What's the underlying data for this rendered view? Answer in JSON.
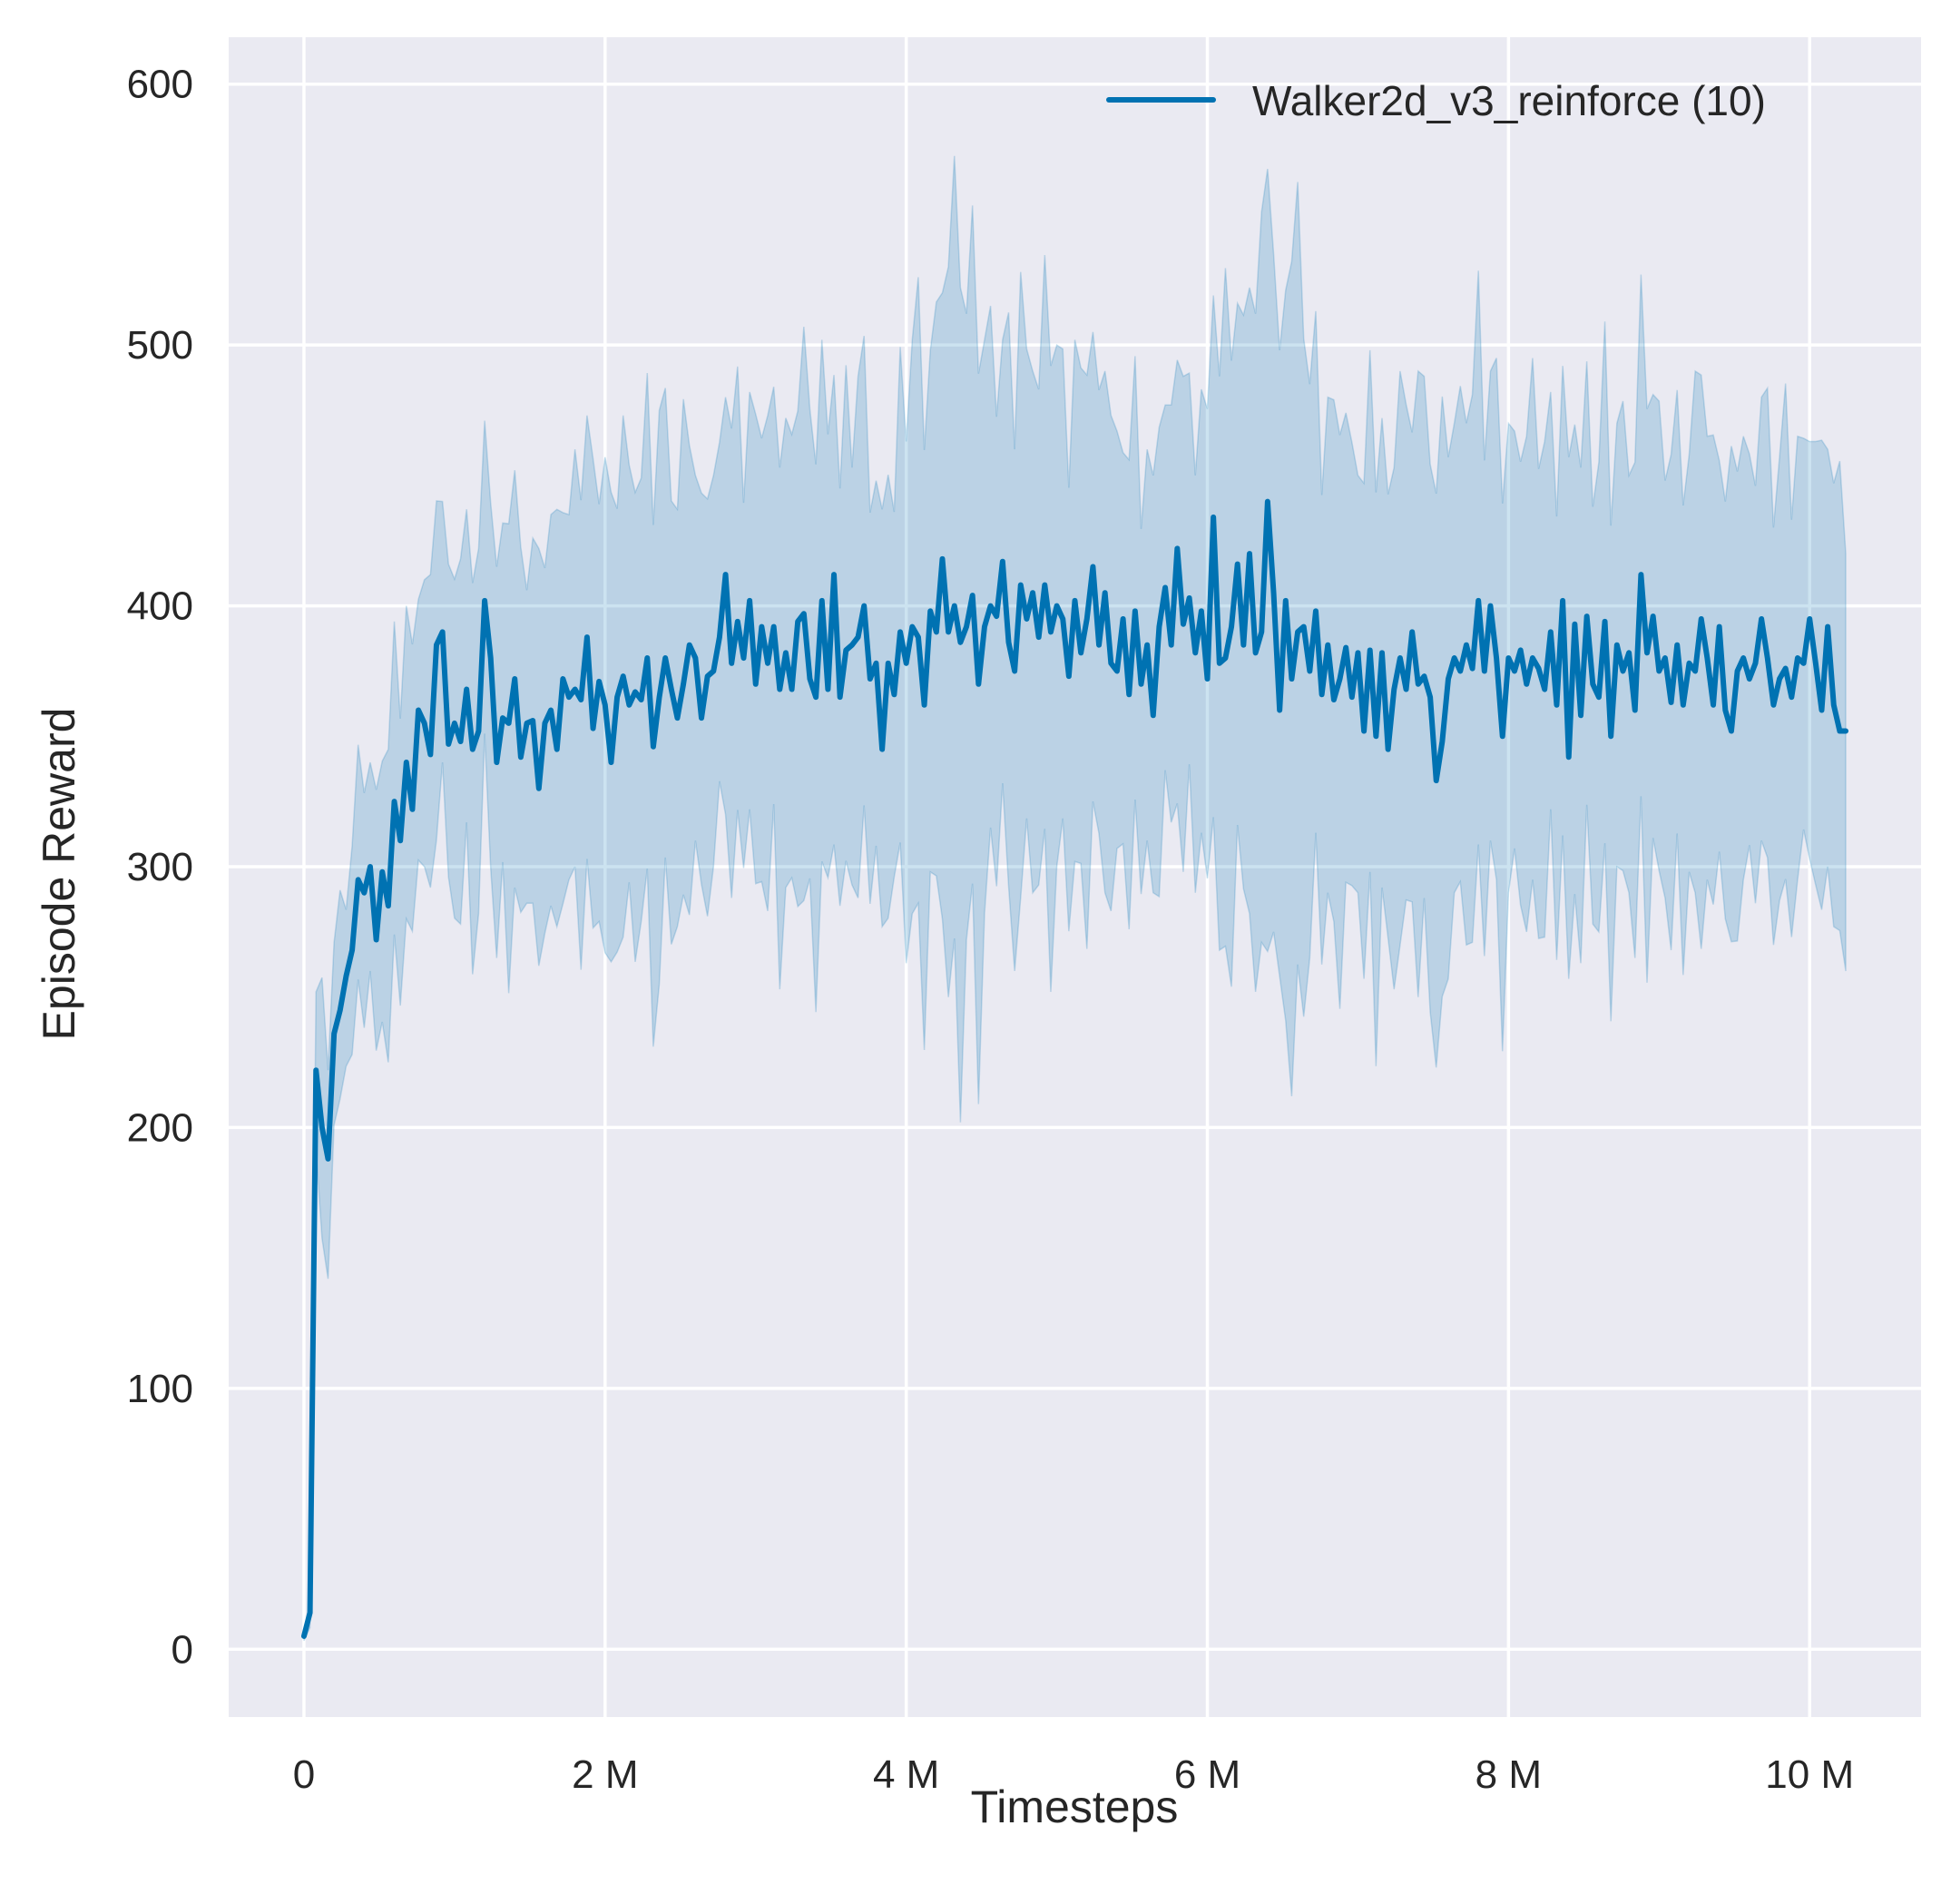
{
  "chart_data": {
    "type": "line",
    "title": "",
    "xlabel": "Timesteps",
    "ylabel": "Episode Reward",
    "xlim": [
      -0.5,
      10.74
    ],
    "ylim": [
      -26,
      618
    ],
    "x_unit": "M",
    "xticks": [
      0,
      2,
      4,
      6,
      8,
      10
    ],
    "xtick_labels": [
      "0",
      "2 M",
      "4 M",
      "6 M",
      "8 M",
      "10 M"
    ],
    "yticks": [
      0,
      100,
      200,
      300,
      400,
      500,
      600
    ],
    "ytick_labels": [
      "0",
      "100",
      "200",
      "300",
      "400",
      "500",
      "600"
    ],
    "grid": true,
    "legend_placement": "top-right",
    "background_color": "#eaeaf2",
    "series": [
      {
        "name": "Walker2d_v3_reinforce (10)",
        "color": "#0072b2",
        "band": "shaded confidence band around mean",
        "x": [
          0,
          0.04,
          0.08,
          0.12,
          0.16,
          0.2,
          0.24,
          0.28,
          0.32,
          0.36,
          0.4,
          0.44,
          0.48,
          0.52,
          0.56,
          0.6,
          0.64,
          0.68,
          0.72,
          0.76,
          0.8,
          0.84,
          0.88,
          0.92,
          0.96,
          1.0,
          1.04,
          1.08,
          1.12,
          1.16,
          1.2,
          1.24,
          1.28,
          1.32,
          1.36,
          1.4,
          1.44,
          1.48,
          1.52,
          1.56,
          1.6,
          1.64,
          1.68,
          1.72,
          1.76,
          1.8,
          1.84,
          1.88,
          1.92,
          1.96,
          2.0,
          2.04,
          2.08,
          2.12,
          2.16,
          2.2,
          2.24,
          2.28,
          2.32,
          2.36,
          2.4,
          2.44,
          2.48,
          2.52,
          2.56,
          2.6,
          2.64,
          2.68,
          2.72,
          2.76,
          2.8,
          2.84,
          2.88,
          2.92,
          2.96,
          3.0,
          3.04,
          3.08,
          3.12,
          3.16,
          3.2,
          3.24,
          3.28,
          3.32,
          3.36,
          3.4,
          3.44,
          3.48,
          3.52,
          3.56,
          3.6,
          3.64,
          3.68,
          3.72,
          3.76,
          3.8,
          3.84,
          3.88,
          3.92,
          3.96,
          4.0,
          4.04,
          4.08,
          4.12,
          4.16,
          4.2,
          4.24,
          4.28,
          4.32,
          4.36,
          4.4,
          4.44,
          4.48,
          4.52,
          4.56,
          4.6,
          4.64,
          4.68,
          4.72,
          4.76,
          4.8,
          4.84,
          4.88,
          4.92,
          4.96,
          5.0,
          5.04,
          5.08,
          5.12,
          5.16,
          5.2,
          5.24,
          5.28,
          5.32,
          5.36,
          5.4,
          5.44,
          5.48,
          5.52,
          5.56,
          5.6,
          5.64,
          5.68,
          5.72,
          5.76,
          5.8,
          5.84,
          5.88,
          5.92,
          5.96,
          6.0,
          6.04,
          6.08,
          6.12,
          6.16,
          6.2,
          6.24,
          6.28,
          6.32,
          6.36,
          6.4,
          6.44,
          6.48,
          6.52,
          6.56,
          6.6,
          6.64,
          6.68,
          6.72,
          6.76,
          6.8,
          6.84,
          6.88,
          6.92,
          6.96,
          7.0,
          7.04,
          7.08,
          7.12,
          7.16,
          7.2,
          7.24,
          7.28,
          7.32,
          7.36,
          7.4,
          7.44,
          7.48,
          7.52,
          7.56,
          7.6,
          7.64,
          7.68,
          7.72,
          7.76,
          7.8,
          7.84,
          7.88,
          7.92,
          7.96,
          8.0,
          8.04,
          8.08,
          8.12,
          8.16,
          8.2,
          8.24,
          8.28,
          8.32,
          8.36,
          8.4,
          8.44,
          8.48,
          8.52,
          8.56,
          8.6,
          8.64,
          8.68,
          8.72,
          8.76,
          8.8,
          8.84,
          8.88,
          8.92,
          8.96,
          9.0,
          9.04,
          9.08,
          9.12,
          9.16,
          9.2,
          9.24,
          9.28,
          9.32,
          9.36,
          9.4,
          9.44,
          9.48,
          9.52,
          9.56,
          9.6,
          9.64,
          9.68,
          9.72,
          9.76,
          9.8,
          9.84,
          9.88,
          9.92,
          9.96,
          10.0,
          10.04,
          10.08,
          10.12,
          10.16,
          10.2,
          10.24
        ],
        "mean": [
          5,
          14,
          222,
          200,
          188,
          236,
          245,
          258,
          268,
          295,
          290,
          300,
          272,
          298,
          285,
          325,
          310,
          340,
          322,
          360,
          355,
          343,
          385,
          390,
          347,
          355,
          348,
          368,
          345,
          352,
          402,
          380,
          340,
          357,
          355,
          372,
          342,
          355,
          356,
          330,
          355,
          360,
          345,
          372,
          365,
          368,
          364,
          388,
          353,
          371,
          362,
          340,
          365,
          373,
          362,
          367,
          364,
          380,
          346,
          365,
          380,
          368,
          357,
          370,
          385,
          380,
          357,
          373,
          375,
          388,
          412,
          378,
          394,
          380,
          402,
          370,
          392,
          378,
          392,
          368,
          382,
          368,
          394,
          397,
          372,
          365,
          402,
          368,
          412,
          365,
          383,
          385,
          388,
          400,
          372,
          378,
          345,
          378,
          366,
          390,
          378,
          392,
          388,
          362,
          398,
          390,
          418,
          390,
          400,
          386,
          392,
          404,
          370,
          392,
          400,
          396,
          417,
          386,
          375,
          408,
          395,
          405,
          388,
          408,
          390,
          400,
          395,
          373,
          402,
          382,
          395,
          415,
          385,
          405,
          378,
          375,
          395,
          366,
          398,
          370,
          385,
          358,
          392,
          407,
          385,
          422,
          393,
          403,
          382,
          398,
          372,
          434,
          378,
          380,
          392,
          416,
          385,
          420,
          382,
          390,
          440,
          405,
          360,
          402,
          372,
          390,
          392,
          375,
          398,
          366,
          385,
          364,
          372,
          384,
          365,
          382,
          352,
          383,
          350,
          382,
          345,
          368,
          380,
          368,
          390,
          370,
          373,
          365,
          333,
          348,
          372,
          380,
          375,
          385,
          376,
          402,
          375,
          400,
          380,
          350,
          380,
          375,
          383,
          370,
          380,
          376,
          368,
          390,
          362,
          402,
          342,
          393,
          358,
          396,
          370,
          365,
          394,
          350,
          385,
          375,
          382,
          360,
          412,
          382,
          396,
          375,
          380,
          363,
          385,
          362,
          378,
          375,
          395,
          380,
          362,
          392,
          360,
          352,
          375,
          380,
          372,
          378,
          395,
          380,
          362,
          372,
          376,
          365,
          380,
          378,
          395,
          378,
          360,
          392,
          362,
          352,
          352
        ],
        "ci_halfwidth": [
          2,
          5,
          30,
          50,
          40,
          35,
          40,
          30,
          40,
          45,
          45,
          40,
          50,
          50,
          60,
          60,
          55,
          60,
          55,
          50,
          55,
          60,
          65,
          50,
          60,
          65,
          70,
          60,
          75,
          70,
          60,
          70,
          75,
          65,
          90,
          80,
          70,
          60,
          70,
          80,
          70,
          75,
          80,
          75,
          70,
          80,
          90,
          85,
          90,
          80,
          95,
          90,
          85,
          100,
          80,
          90,
          85,
          95,
          100,
          110,
          90,
          85,
          80,
          95,
          90,
          70,
          75,
          80,
          75,
          65,
          80,
          90,
          85,
          70,
          80,
          90,
          85,
          95,
          80,
          100,
          90,
          85,
          95,
          110,
          90,
          105,
          100,
          85,
          90,
          80,
          95,
          80,
          100,
          90,
          75,
          70,
          80,
          85,
          70,
          95,
          100,
          110,
          120,
          115,
          100,
          110,
          120,
          140,
          150,
          160,
          120,
          130,
          140,
          110,
          100,
          90,
          85,
          110,
          100,
          120,
          90,
          100,
          95,
          110,
          120,
          100,
          90,
          85,
          100,
          95,
          110,
          90,
          85,
          100,
          95,
          80,
          75,
          90,
          85,
          70,
          75,
          80,
          90,
          70,
          80,
          85,
          95,
          75,
          80,
          85,
          90,
          100,
          110,
          130,
          120,
          100,
          110,
          120,
          130,
          140,
          150,
          130,
          120,
          140,
          160,
          150,
          130,
          110,
          100,
          90,
          95,
          100,
          110,
          90,
          85,
          80,
          95,
          100,
          110,
          90,
          85,
          100,
          110,
          95,
          90,
          120,
          100,
          105,
          110,
          115,
          100,
          90,
          95,
          100,
          105,
          110,
          95,
          90,
          100,
          105,
          90,
          80,
          85,
          95,
          100,
          90,
          95,
          80,
          85,
          90,
          100,
          90,
          95,
          85,
          80,
          90,
          100,
          95,
          85,
          90,
          80,
          95,
          100,
          110,
          85,
          90,
          80,
          95,
          85,
          90,
          80,
          100,
          110,
          85,
          90,
          75,
          80,
          95,
          90,
          85,
          75,
          80,
          85,
          90,
          80,
          85,
          95,
          80,
          85,
          75,
          80,
          85,
          90,
          80,
          85,
          90,
          80
        ]
      }
    ]
  }
}
